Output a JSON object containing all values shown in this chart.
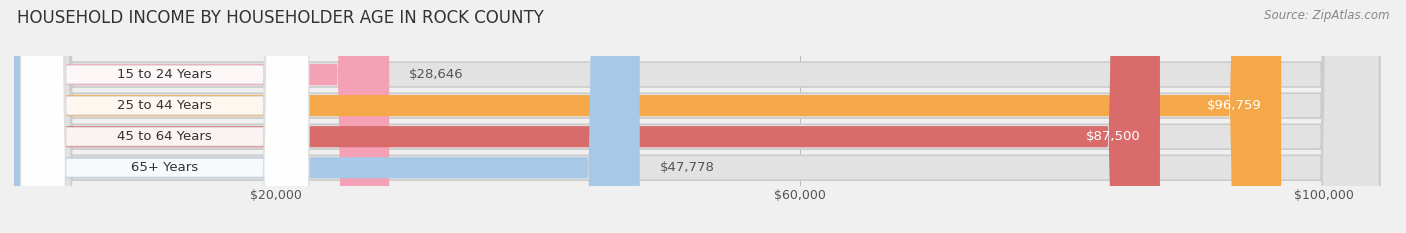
{
  "title": "HOUSEHOLD INCOME BY HOUSEHOLDER AGE IN ROCK COUNTY",
  "source": "Source: ZipAtlas.com",
  "categories": [
    "15 to 24 Years",
    "25 to 44 Years",
    "45 to 64 Years",
    "65+ Years"
  ],
  "values": [
    28646,
    96759,
    87500,
    47778
  ],
  "bar_colors": [
    "#f4a0b5",
    "#f5a84a",
    "#d96b6b",
    "#a8c8e8"
  ],
  "label_colors": [
    "#666666",
    "#ffffff",
    "#ffffff",
    "#666666"
  ],
  "value_inside": [
    false,
    true,
    true,
    false
  ],
  "x_ticks": [
    20000,
    60000,
    100000
  ],
  "x_tick_labels": [
    "$20,000",
    "$60,000",
    "$100,000"
  ],
  "xlim_max": 105000,
  "background_color": "#f0f0f0",
  "bar_bg_color": "#e2e2e2",
  "title_fontsize": 12,
  "source_fontsize": 8.5,
  "label_fontsize": 9.5,
  "cat_fontsize": 9.5,
  "tick_fontsize": 9,
  "figsize": [
    14.06,
    2.33
  ],
  "dpi": 100
}
